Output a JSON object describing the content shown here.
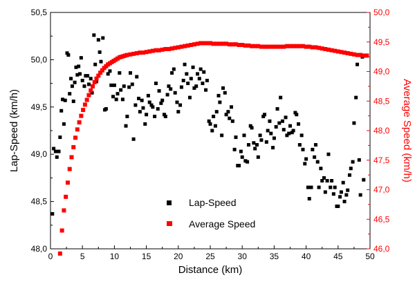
{
  "chart_data": {
    "type": "scatter",
    "xlabel": "Distance (km)",
    "ylabel_left": "Lap-Speed (km/h)",
    "ylabel_right": "Average Speed (km/h)",
    "xlim": [
      0,
      50
    ],
    "ylim_left": [
      48.0,
      50.5
    ],
    "ylim_right": [
      46.0,
      50.0
    ],
    "x_ticks": [
      "0",
      "5",
      "10",
      "15",
      "20",
      "25",
      "30",
      "35",
      "40",
      "45",
      "50"
    ],
    "y_left_ticks": [
      "48,0",
      "48,5",
      "49,0",
      "49,5",
      "50,0",
      "50,5"
    ],
    "y_right_ticks": [
      "46,0",
      "46,5",
      "47,0",
      "47,5",
      "48,0",
      "48,5",
      "49,0",
      "49,5",
      "50,0"
    ],
    "grid": false,
    "legend_position": "bottom-center",
    "series": [
      {
        "name": "Lap-Speed",
        "axis": "left",
        "color": "#000000",
        "marker": "square",
        "points": [
          [
            0.3,
            48.37
          ],
          [
            0.5,
            49.06
          ],
          [
            0.8,
            49.03
          ],
          [
            1.0,
            48.97
          ],
          [
            1.3,
            49.03
          ],
          [
            1.5,
            49.18
          ],
          [
            1.7,
            49.46
          ],
          [
            1.9,
            49.58
          ],
          [
            2.1,
            49.32
          ],
          [
            2.3,
            49.57
          ],
          [
            2.6,
            50.07
          ],
          [
            2.8,
            50.05
          ],
          [
            3.0,
            49.64
          ],
          [
            3.2,
            49.8
          ],
          [
            3.4,
            49.72
          ],
          [
            3.6,
            49.56
          ],
          [
            3.8,
            49.76
          ],
          [
            4.0,
            49.92
          ],
          [
            4.2,
            49.84
          ],
          [
            4.4,
            49.93
          ],
          [
            4.6,
            49.85
          ],
          [
            4.8,
            50.02
          ],
          [
            5.0,
            49.78
          ],
          [
            5.3,
            49.72
          ],
          [
            5.5,
            49.83
          ],
          [
            5.8,
            49.83
          ],
          [
            6.0,
            49.74
          ],
          [
            6.3,
            49.8
          ],
          [
            6.5,
            49.65
          ],
          [
            6.8,
            50.26
          ],
          [
            7.0,
            49.95
          ],
          [
            7.2,
            49.77
          ],
          [
            7.5,
            50.21
          ],
          [
            7.7,
            50.08
          ],
          [
            7.9,
            49.98
          ],
          [
            8.2,
            50.23
          ],
          [
            8.5,
            49.47
          ],
          [
            8.7,
            49.48
          ],
          [
            9.0,
            49.85
          ],
          [
            9.3,
            49.88
          ],
          [
            9.5,
            49.73
          ],
          [
            9.8,
            49.61
          ],
          [
            10.0,
            49.73
          ],
          [
            10.3,
            49.58
          ],
          [
            10.5,
            49.64
          ],
          [
            10.8,
            49.86
          ],
          [
            11.0,
            49.68
          ],
          [
            11.3,
            49.58
          ],
          [
            11.5,
            49.72
          ],
          [
            11.8,
            49.3
          ],
          [
            12.0,
            49.4
          ],
          [
            12.3,
            49.71
          ],
          [
            12.5,
            49.86
          ],
          [
            12.8,
            49.74
          ],
          [
            13.0,
            49.16
          ],
          [
            13.3,
            49.52
          ],
          [
            13.5,
            49.82
          ],
          [
            13.8,
            49.59
          ],
          [
            14.0,
            49.45
          ],
          [
            14.3,
            49.57
          ],
          [
            14.5,
            49.49
          ],
          [
            14.8,
            49.32
          ],
          [
            15.0,
            49.42
          ],
          [
            15.3,
            49.62
          ],
          [
            15.5,
            49.55
          ],
          [
            15.8,
            49.52
          ],
          [
            16.0,
            49.5
          ],
          [
            16.3,
            49.4
          ],
          [
            16.5,
            49.75
          ],
          [
            16.8,
            49.48
          ],
          [
            17.0,
            49.67
          ],
          [
            17.3,
            49.54
          ],
          [
            17.5,
            49.57
          ],
          [
            17.8,
            49.42
          ],
          [
            18.0,
            49.4
          ],
          [
            18.3,
            49.63
          ],
          [
            18.5,
            49.72
          ],
          [
            18.8,
            49.69
          ],
          [
            19.0,
            49.86
          ],
          [
            19.3,
            49.9
          ],
          [
            19.5,
            49.65
          ],
          [
            19.8,
            49.55
          ],
          [
            20.0,
            49.45
          ],
          [
            20.3,
            49.52
          ],
          [
            20.5,
            49.71
          ],
          [
            20.8,
            49.78
          ],
          [
            21.0,
            49.95
          ],
          [
            21.3,
            49.85
          ],
          [
            21.5,
            49.75
          ],
          [
            21.8,
            49.6
          ],
          [
            22.0,
            49.8
          ],
          [
            22.3,
            49.92
          ],
          [
            22.5,
            49.7
          ],
          [
            22.8,
            49.72
          ],
          [
            23.0,
            49.85
          ],
          [
            23.3,
            49.8
          ],
          [
            23.5,
            49.9
          ],
          [
            23.8,
            49.75
          ],
          [
            24.0,
            49.87
          ],
          [
            24.3,
            49.68
          ],
          [
            24.5,
            49.78
          ],
          [
            24.8,
            49.35
          ],
          [
            25.0,
            49.32
          ],
          [
            25.3,
            49.25
          ],
          [
            25.5,
            49.4
          ],
          [
            25.8,
            49.3
          ],
          [
            26.0,
            49.45
          ],
          [
            26.3,
            49.62
          ],
          [
            26.5,
            49.55
          ],
          [
            26.8,
            49.2
          ],
          [
            27.0,
            49.7
          ],
          [
            27.3,
            49.65
          ],
          [
            27.5,
            49.42
          ],
          [
            27.8,
            49.45
          ],
          [
            28.0,
            49.38
          ],
          [
            28.3,
            49.5
          ],
          [
            28.5,
            49.35
          ],
          [
            28.8,
            49.05
          ],
          [
            29.0,
            49.18
          ],
          [
            29.3,
            48.88
          ],
          [
            29.5,
            48.88
          ],
          [
            29.8,
            49.03
          ],
          [
            30.0,
            48.97
          ],
          [
            30.3,
            49.2
          ],
          [
            30.5,
            48.93
          ],
          [
            30.8,
            48.92
          ],
          [
            31.0,
            49.1
          ],
          [
            31.3,
            49.3
          ],
          [
            31.5,
            49.28
          ],
          [
            31.8,
            49.12
          ],
          [
            32.0,
            49.06
          ],
          [
            32.3,
            49.1
          ],
          [
            32.5,
            48.97
          ],
          [
            32.8,
            49.2
          ],
          [
            33.0,
            49.15
          ],
          [
            33.3,
            49.4
          ],
          [
            33.5,
            49.42
          ],
          [
            33.8,
            49.13
          ],
          [
            34.0,
            49.25
          ],
          [
            34.3,
            49.35
          ],
          [
            34.5,
            49.22
          ],
          [
            34.8,
            49.07
          ],
          [
            35.0,
            49.17
          ],
          [
            35.3,
            49.29
          ],
          [
            35.5,
            49.48
          ],
          [
            35.8,
            49.33
          ],
          [
            36.0,
            49.6
          ],
          [
            36.3,
            49.35
          ],
          [
            36.5,
            49.26
          ],
          [
            36.8,
            49.39
          ],
          [
            37.0,
            49.2
          ],
          [
            37.3,
            49.22
          ],
          [
            37.5,
            49.3
          ],
          [
            37.8,
            49.23
          ],
          [
            38.0,
            49.25
          ],
          [
            38.3,
            49.44
          ],
          [
            38.5,
            49.42
          ],
          [
            38.8,
            49.32
          ],
          [
            39.0,
            49.1
          ],
          [
            39.3,
            49.2
          ],
          [
            39.5,
            49.05
          ],
          [
            39.8,
            48.9
          ],
          [
            40.0,
            48.95
          ],
          [
            40.3,
            48.65
          ],
          [
            40.5,
            48.53
          ],
          [
            40.8,
            48.65
          ],
          [
            41.0,
            49.05
          ],
          [
            41.3,
            48.97
          ],
          [
            41.5,
            49.1
          ],
          [
            41.8,
            48.92
          ],
          [
            42.0,
            48.65
          ],
          [
            42.3,
            48.85
          ],
          [
            42.5,
            48.72
          ],
          [
            42.8,
            48.75
          ],
          [
            43.0,
            48.6
          ],
          [
            43.3,
            48.72
          ],
          [
            43.5,
            49.0
          ],
          [
            43.8,
            48.65
          ],
          [
            44.0,
            48.72
          ],
          [
            44.3,
            48.58
          ],
          [
            44.5,
            48.65
          ],
          [
            44.8,
            48.45
          ],
          [
            45.0,
            48.45
          ],
          [
            45.3,
            48.55
          ],
          [
            45.5,
            48.6
          ],
          [
            45.8,
            48.7
          ],
          [
            46.0,
            48.5
          ],
          [
            46.3,
            48.57
          ],
          [
            46.5,
            48.62
          ],
          [
            46.8,
            48.78
          ],
          [
            47.0,
            48.85
          ],
          [
            47.3,
            48.92
          ],
          [
            47.5,
            49.33
          ],
          [
            47.8,
            49.6
          ],
          [
            48.0,
            49.95
          ],
          [
            48.3,
            48.94
          ],
          [
            48.5,
            48.57
          ],
          [
            48.8,
            50.03
          ],
          [
            49.0,
            48.73
          ]
        ]
      },
      {
        "name": "Average Speed",
        "axis": "right",
        "color": "#ff0000",
        "marker": "square",
        "points": [
          [
            1.5,
            45.92
          ],
          [
            1.8,
            46.31
          ],
          [
            2.1,
            46.65
          ],
          [
            2.4,
            46.88
          ],
          [
            2.7,
            47.12
          ],
          [
            3.0,
            47.35
          ],
          [
            3.3,
            47.55
          ],
          [
            3.6,
            47.72
          ],
          [
            3.9,
            47.88
          ],
          [
            4.2,
            48.02
          ],
          [
            4.5,
            48.14
          ],
          [
            4.8,
            48.25
          ],
          [
            5.1,
            48.35
          ],
          [
            5.4,
            48.44
          ],
          [
            5.7,
            48.52
          ],
          [
            6.0,
            48.6
          ],
          [
            6.3,
            48.68
          ],
          [
            6.6,
            48.75
          ],
          [
            6.9,
            48.82
          ],
          [
            7.2,
            48.88
          ],
          [
            7.5,
            48.93
          ],
          [
            7.8,
            48.98
          ],
          [
            8.1,
            49.02
          ],
          [
            8.4,
            49.06
          ],
          [
            8.7,
            49.09
          ],
          [
            9.0,
            49.12
          ],
          [
            9.3,
            49.14
          ],
          [
            9.6,
            49.16
          ],
          [
            9.9,
            49.18
          ],
          [
            10.2,
            49.2
          ],
          [
            10.5,
            49.22
          ],
          [
            10.8,
            49.24
          ],
          [
            11.1,
            49.25
          ],
          [
            11.4,
            49.26
          ],
          [
            11.7,
            49.27
          ],
          [
            12.0,
            49.28
          ],
          [
            12.5,
            49.29
          ],
          [
            13.0,
            49.3
          ],
          [
            13.5,
            49.31
          ],
          [
            14.0,
            49.32
          ],
          [
            14.5,
            49.32
          ],
          [
            15.0,
            49.33
          ],
          [
            15.5,
            49.34
          ],
          [
            16.0,
            49.35
          ],
          [
            16.5,
            49.36
          ],
          [
            17.0,
            49.36
          ],
          [
            17.5,
            49.37
          ],
          [
            18.0,
            49.38
          ],
          [
            18.5,
            49.38
          ],
          [
            19.0,
            49.39
          ],
          [
            19.5,
            49.4
          ],
          [
            20.0,
            49.41
          ],
          [
            20.5,
            49.42
          ],
          [
            21.0,
            49.43
          ],
          [
            21.5,
            49.44
          ],
          [
            22.0,
            49.45
          ],
          [
            22.5,
            49.46
          ],
          [
            23.0,
            49.47
          ],
          [
            23.5,
            49.48
          ],
          [
            24.0,
            49.48
          ],
          [
            24.5,
            49.48
          ],
          [
            25.0,
            49.48
          ],
          [
            25.5,
            49.47
          ],
          [
            26.0,
            49.47
          ],
          [
            26.5,
            49.47
          ],
          [
            27.0,
            49.47
          ],
          [
            27.5,
            49.47
          ],
          [
            28.0,
            49.46
          ],
          [
            28.5,
            49.46
          ],
          [
            29.0,
            49.46
          ],
          [
            29.5,
            49.45
          ],
          [
            30.0,
            49.45
          ],
          [
            30.5,
            49.44
          ],
          [
            31.0,
            49.44
          ],
          [
            31.5,
            49.43
          ],
          [
            32.0,
            49.43
          ],
          [
            32.5,
            49.43
          ],
          [
            33.0,
            49.42
          ],
          [
            33.5,
            49.42
          ],
          [
            34.0,
            49.42
          ],
          [
            34.5,
            49.42
          ],
          [
            35.0,
            49.42
          ],
          [
            35.5,
            49.42
          ],
          [
            36.0,
            49.42
          ],
          [
            36.5,
            49.42
          ],
          [
            37.0,
            49.43
          ],
          [
            37.5,
            49.43
          ],
          [
            38.0,
            49.43
          ],
          [
            38.5,
            49.43
          ],
          [
            39.0,
            49.43
          ],
          [
            39.5,
            49.43
          ],
          [
            40.0,
            49.42
          ],
          [
            40.5,
            49.42
          ],
          [
            41.0,
            49.41
          ],
          [
            41.5,
            49.41
          ],
          [
            42.0,
            49.4
          ],
          [
            42.5,
            49.39
          ],
          [
            43.0,
            49.38
          ],
          [
            43.5,
            49.37
          ],
          [
            44.0,
            49.36
          ],
          [
            44.5,
            49.35
          ],
          [
            45.0,
            49.34
          ],
          [
            45.5,
            49.33
          ],
          [
            46.0,
            49.32
          ],
          [
            46.5,
            49.31
          ],
          [
            47.0,
            49.3
          ],
          [
            47.5,
            49.29
          ],
          [
            48.0,
            49.28
          ],
          [
            48.5,
            49.28
          ],
          [
            49.0,
            49.27
          ],
          [
            49.5,
            49.27
          ]
        ]
      }
    ]
  }
}
